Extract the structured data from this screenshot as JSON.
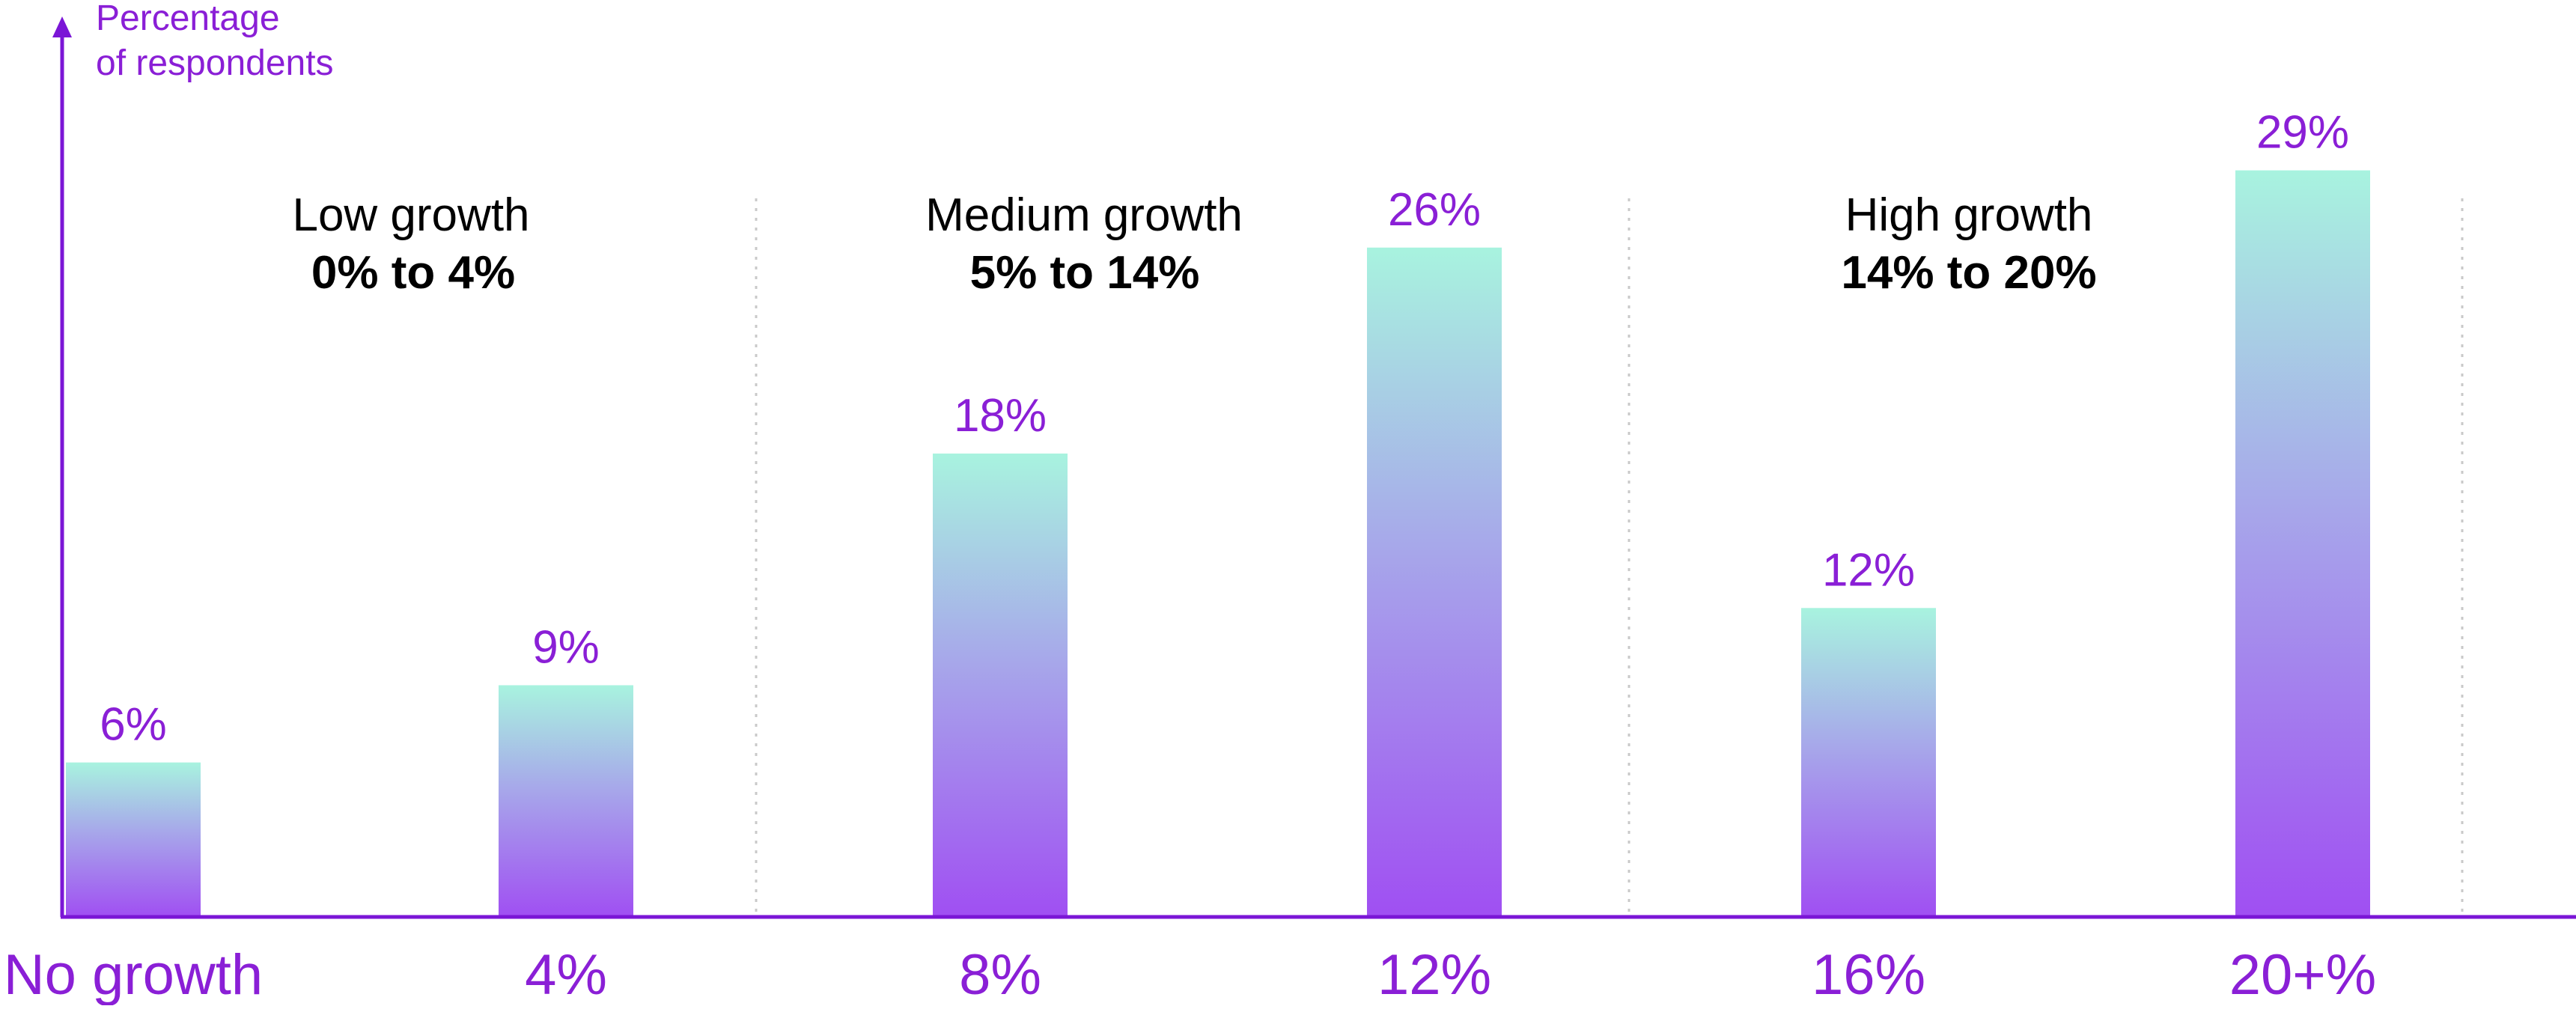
{
  "chart_data": {
    "type": "bar",
    "title": "",
    "xlabel": "",
    "ylabel": [
      "Percentage",
      "of respondents"
    ],
    "categories": [
      "No growth",
      "4%",
      "8%",
      "12%",
      "16%",
      "20+%"
    ],
    "values": [
      6,
      9,
      18,
      26,
      12,
      29
    ],
    "value_labels": [
      "6%",
      "9%",
      "18%",
      "26%",
      "12%",
      "29%"
    ],
    "ylim": [
      0,
      33
    ],
    "grid": false,
    "groups": [
      {
        "name": "Low growth",
        "range": "0% to 4%"
      },
      {
        "name": "Medium growth",
        "range": "5% to 14%"
      },
      {
        "name": "High growth",
        "range": "14% to 20%"
      }
    ]
  },
  "colors": {
    "axis": "#7b16d6",
    "label": "#8a1fd6",
    "text": "#000000",
    "divider": "#c9c9c9",
    "bar_top": "#a8f3df",
    "bar_mid": "#a7a7ea",
    "bar_bottom": "#a04ff2"
  }
}
